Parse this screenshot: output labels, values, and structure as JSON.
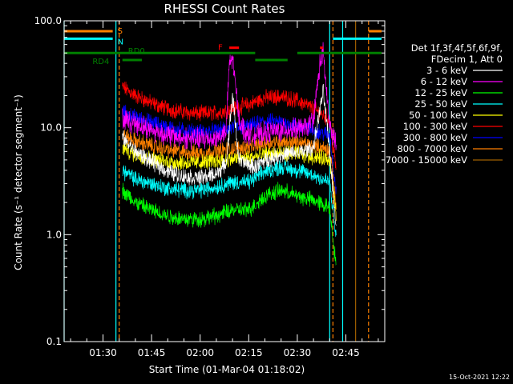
{
  "chart_data": {
    "type": "line",
    "title": "RHESSI Count Rates",
    "xlabel": "Start Time (01-Mar-04 01:18:02)",
    "ylabel": "Count Rate (s⁻¹ detector segment⁻¹)",
    "x_range": [
      "01:18",
      "02:57"
    ],
    "ylim": [
      0.1,
      100.0
    ],
    "y_scale": "log",
    "x_ticks": [
      "01:30",
      "01:45",
      "02:00",
      "02:15",
      "02:30",
      "02:45"
    ],
    "y_ticks": [
      {
        "value": 0.1,
        "label": "0.1"
      },
      {
        "value": 1.0,
        "label": "1.0"
      },
      {
        "value": 10.0,
        "label": "10.0"
      },
      {
        "value": 100.0,
        "label": "100.0"
      }
    ],
    "grid": false,
    "legend_position": "right",
    "legend_header": [
      "Det 1f,3f,4f,5f,6f,9f,",
      "FDecim 1, Att 0"
    ],
    "data_start": "01:36",
    "data_end": "02:42",
    "series": [
      {
        "name": "3 - 6 keV",
        "color": "#ffffff",
        "x": [
          "01:36",
          "01:40",
          "01:45",
          "01:50",
          "01:55",
          "02:00",
          "02:05",
          "02:08",
          "02:10",
          "02:12",
          "02:14",
          "02:17",
          "02:20",
          "02:25",
          "02:30",
          "02:33",
          "02:35",
          "02:38",
          "02:40",
          "02:42"
        ],
        "y": [
          8.0,
          6.0,
          4.8,
          3.9,
          3.5,
          3.4,
          3.7,
          4.6,
          20.0,
          5.0,
          4.6,
          4.3,
          5.0,
          5.6,
          5.8,
          6.2,
          6.5,
          22.0,
          6.0,
          1.2
        ]
      },
      {
        "name": "6 - 12 keV",
        "color": "#ff00ff",
        "x": [
          "01:36",
          "01:40",
          "01:45",
          "01:50",
          "01:55",
          "02:00",
          "02:05",
          "02:08",
          "02:09",
          "02:10",
          "02:12",
          "02:14",
          "02:17",
          "02:20",
          "02:25",
          "02:30",
          "02:33",
          "02:35",
          "02:37",
          "02:38",
          "02:40",
          "02:42"
        ],
        "y": [
          12.0,
          11.0,
          9.5,
          8.5,
          8.0,
          7.8,
          8.0,
          9.0,
          40.0,
          45.0,
          12.0,
          9.0,
          8.5,
          9.0,
          9.5,
          9.8,
          10.0,
          12.0,
          40.0,
          50.0,
          10.0,
          7.0
        ]
      },
      {
        "name": "12 - 25 keV",
        "color": "#00ff00",
        "x": [
          "01:36",
          "01:40",
          "01:45",
          "01:50",
          "01:55",
          "02:00",
          "02:05",
          "02:10",
          "02:15",
          "02:20",
          "02:25",
          "02:30",
          "02:35",
          "02:40",
          "02:42"
        ],
        "y": [
          2.6,
          2.0,
          1.7,
          1.5,
          1.4,
          1.4,
          1.5,
          1.7,
          1.7,
          2.3,
          2.6,
          2.3,
          2.1,
          1.8,
          0.5
        ]
      },
      {
        "name": "25 - 50 keV",
        "color": "#00ffff",
        "x": [
          "01:36",
          "01:40",
          "01:45",
          "01:50",
          "01:55",
          "02:00",
          "02:05",
          "02:10",
          "02:15",
          "02:20",
          "02:25",
          "02:30",
          "02:35",
          "02:40",
          "02:42"
        ],
        "y": [
          4.0,
          3.3,
          3.0,
          2.7,
          2.6,
          2.6,
          2.8,
          3.1,
          3.1,
          3.9,
          4.3,
          4.0,
          3.6,
          3.1,
          0.9
        ]
      },
      {
        "name": "50 - 100 keV",
        "color": "#ffff00",
        "x": [
          "01:36",
          "01:40",
          "01:45",
          "01:50",
          "01:55",
          "02:00",
          "02:05",
          "02:10",
          "02:15",
          "02:20",
          "02:25",
          "02:30",
          "02:35",
          "02:40",
          "02:42"
        ],
        "y": [
          6.5,
          5.6,
          5.1,
          4.8,
          4.7,
          4.7,
          4.9,
          5.1,
          5.2,
          5.6,
          5.8,
          5.7,
          5.4,
          5.1,
          1.5
        ]
      },
      {
        "name": "100 - 300 keV",
        "color": "#ff0000",
        "x": [
          "01:36",
          "01:40",
          "01:45",
          "01:50",
          "01:55",
          "02:00",
          "02:05",
          "02:10",
          "02:15",
          "02:20",
          "02:25",
          "02:30",
          "02:35",
          "02:40",
          "02:42"
        ],
        "y": [
          24.0,
          20.0,
          17.0,
          15.0,
          14.0,
          13.5,
          13.8,
          15.0,
          16.5,
          19.0,
          19.5,
          18.0,
          15.0,
          12.0,
          4.0
        ]
      },
      {
        "name": "300 - 800 keV",
        "color": "#0000ff",
        "x": [
          "01:36",
          "01:40",
          "01:45",
          "01:50",
          "01:55",
          "02:00",
          "02:05",
          "02:10",
          "02:15",
          "02:20",
          "02:25",
          "02:30",
          "02:35",
          "02:40",
          "02:42"
        ],
        "y": [
          14.0,
          12.5,
          11.2,
          10.0,
          9.4,
          9.1,
          9.3,
          10.0,
          10.2,
          11.5,
          11.2,
          10.5,
          9.5,
          8.5,
          2.5
        ]
      },
      {
        "name": "800 - 7000 keV",
        "color": "#ff8000",
        "x": [
          "01:36",
          "01:40",
          "01:45",
          "01:50",
          "01:55",
          "02:00",
          "02:05",
          "02:10",
          "02:15",
          "02:20",
          "02:25",
          "02:30",
          "02:35",
          "02:40",
          "02:42"
        ],
        "y": [
          8.5,
          7.5,
          6.8,
          6.2,
          5.9,
          5.8,
          6.0,
          6.4,
          6.6,
          7.2,
          7.5,
          7.2,
          6.8,
          6.2,
          1.8
        ]
      },
      {
        "name": "7000 - 15000 keV",
        "color": "#a06000",
        "x": [],
        "y": []
      }
    ],
    "vertical_lines": [
      {
        "x": "01:18",
        "color": "#00ffff",
        "style": "solid"
      },
      {
        "x": "01:34",
        "color": "#00ffff",
        "style": "solid"
      },
      {
        "x": "01:35",
        "color": "#ff8000",
        "style": "dashed"
      },
      {
        "x": "02:40",
        "color": "#00ffff",
        "style": "solid"
      },
      {
        "x": "02:41",
        "color": "#ff8000",
        "style": "dashed"
      },
      {
        "x": "02:44",
        "color": "#00ffff",
        "style": "solid"
      },
      {
        "x": "02:48",
        "color": "#a06000",
        "style": "solid"
      },
      {
        "x": "02:52",
        "color": "#ff8000",
        "style": "dashed"
      }
    ],
    "flags": [
      {
        "label": "S",
        "color": "#ff8000",
        "y": 80.0,
        "segments": [
          [
            "01:18",
            "01:33"
          ],
          [
            "02:52",
            "02:56"
          ]
        ]
      },
      {
        "label": "N",
        "color": "#00ffff",
        "y": 68.0,
        "segments": [
          [
            "01:18",
            "01:33"
          ],
          [
            "02:41",
            "02:56"
          ]
        ]
      },
      {
        "label": "RD0",
        "color": "#008000",
        "y": 50.0,
        "segments": [
          [
            "01:18",
            "02:17"
          ],
          [
            "02:30",
            "02:56"
          ]
        ]
      },
      {
        "label": "RD4",
        "color": "#008000",
        "y": 43.0,
        "segments": [
          [
            "01:36",
            "01:42"
          ],
          [
            "02:17",
            "02:27"
          ]
        ]
      },
      {
        "label": "F",
        "color": "#ff0000",
        "y": 56.0,
        "segments": [
          [
            "02:09",
            "02:12"
          ],
          [
            "02:37",
            "02:38"
          ]
        ]
      }
    ]
  },
  "timestamp": "15-Oct-2021 12:22"
}
